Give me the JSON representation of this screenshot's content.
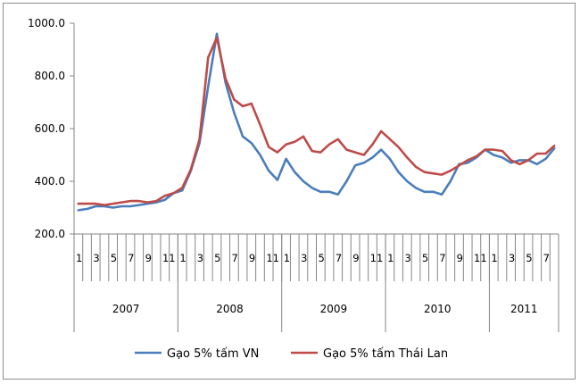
{
  "chart_data": {
    "type": "line",
    "ylim": [
      200.0,
      1000.0
    ],
    "y_ticks": [
      "1000.0",
      "800.0",
      "600.0",
      "400.0",
      "200.0"
    ],
    "y_tick_values": [
      1000,
      800,
      600,
      400,
      200
    ],
    "month_tick_labels": [
      "1",
      "3",
      "5",
      "7",
      "9",
      "11",
      "1",
      "3",
      "5",
      "7",
      "9",
      "11",
      "1",
      "3",
      "5",
      "7",
      "9",
      "11",
      "1",
      "3",
      "5",
      "7",
      "9",
      "11",
      "1",
      "3",
      "5",
      "7"
    ],
    "years": [
      {
        "label": "2007",
        "months": 12
      },
      {
        "label": "2008",
        "months": 12
      },
      {
        "label": "2009",
        "months": 12
      },
      {
        "label": "2010",
        "months": 12
      },
      {
        "label": "2011",
        "months": 8
      }
    ],
    "grid": false,
    "legend_position": "bottom",
    "series": [
      {
        "name": "Gạo 5% tấm VN",
        "color": "#4a7ebb",
        "values": [
          290,
          295,
          305,
          305,
          300,
          305,
          305,
          310,
          315,
          320,
          330,
          355,
          365,
          440,
          545,
          760,
          960,
          775,
          660,
          570,
          545,
          500,
          440,
          405,
          485,
          435,
          400,
          375,
          360,
          360,
          350,
          400,
          460,
          470,
          490,
          520,
          485,
          435,
          400,
          375,
          360,
          360,
          350,
          400,
          465,
          470,
          490,
          520,
          500,
          490,
          470,
          480,
          480,
          465,
          485,
          525
        ]
      },
      {
        "name": "Gạo 5% tấm Thái Lan",
        "color": "#be4b48",
        "values": [
          315,
          315,
          315,
          310,
          315,
          320,
          325,
          325,
          320,
          325,
          345,
          355,
          375,
          445,
          560,
          870,
          945,
          790,
          710,
          685,
          695,
          615,
          530,
          510,
          540,
          550,
          570,
          515,
          510,
          540,
          560,
          520,
          510,
          500,
          540,
          590,
          560,
          530,
          490,
          455,
          435,
          430,
          425,
          440,
          460,
          480,
          495,
          520,
          520,
          515,
          480,
          465,
          480,
          505,
          505,
          535
        ]
      }
    ]
  }
}
